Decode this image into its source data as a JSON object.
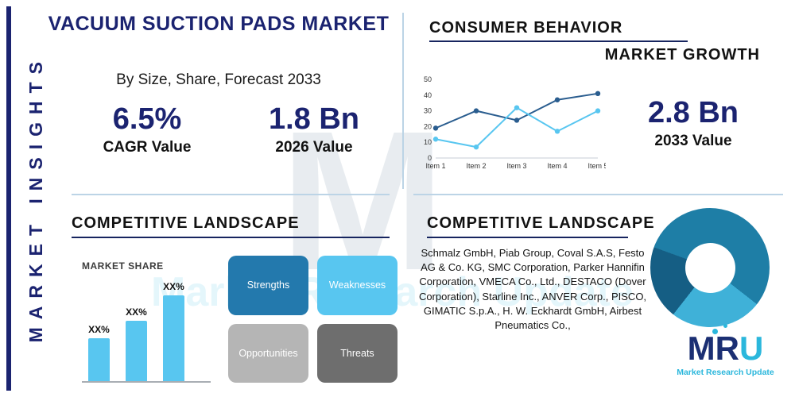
{
  "colors": {
    "navy": "#1b2370",
    "teal": "#2bb7dc",
    "light_blue": "#58c6f0",
    "divider": "#bcd4e6"
  },
  "sidebar": {
    "label": "MARKET INSIGHTS"
  },
  "header": {
    "title": "VACUUM SUCTION PADS MARKET",
    "subtitle": "By Size, Share, Forecast 2033"
  },
  "stats": {
    "cagr": {
      "value": "6.5%",
      "label": "CAGR Value"
    },
    "value_2026": {
      "value": "1.8 Bn",
      "label": "2026 Value"
    },
    "value_2033": {
      "value": "2.8 Bn",
      "label": "2033 Value"
    }
  },
  "sections": {
    "consumer_behavior": "CONSUMER BEHAVIOR",
    "market_growth": "MARKET GROWTH",
    "competitive_landscape_left": "COMPETITIVE LANDSCAPE",
    "competitive_landscape_right": "COMPETITIVE LANDSCAPE"
  },
  "swot": [
    {
      "label": "Strengths",
      "color": "#2379ad"
    },
    {
      "label": "Weaknesses",
      "color": "#58c6f0"
    },
    {
      "label": "Opportunities",
      "color": "#b5b5b5"
    },
    {
      "label": "Threats",
      "color": "#6e6e6e"
    }
  ],
  "companies": "Schmalz GmbH, Piab Group, Coval S.A.S, Festo AG & Co. KG, SMC Corporation, Parker Hannifin Corporation, VMECA Co., Ltd., DESTACO (Dover Corporation), Starline Inc., ANVER Corp., PISCO, GIMATIC S.p.A., H. W. Eckhardt GmbH, Airbest Pneumatics Co.,",
  "logo": {
    "m": "M",
    "r": "R",
    "u": "U",
    "tagline": "Market Research Update"
  },
  "watermark": {
    "letter": "M"
  },
  "chart_data": [
    {
      "type": "line",
      "title": "",
      "x": [
        "Item 1",
        "Item 2",
        "Item 3",
        "Item 4",
        "Item 5"
      ],
      "series": [
        {
          "name": "series-dark-blue",
          "color": "#2a5d8f",
          "values": [
            19,
            30,
            24,
            37,
            41
          ]
        },
        {
          "name": "series-light-blue",
          "color": "#58c6f0",
          "values": [
            12,
            7,
            32,
            17,
            30
          ]
        }
      ],
      "ylim": [
        0,
        50
      ],
      "yticks": [
        0,
        10,
        20,
        30,
        40,
        50
      ],
      "legend": "none",
      "grid": false
    },
    {
      "type": "bar",
      "title": "MARKET SHARE",
      "categories": [
        "XX%",
        "XX%",
        "XX%"
      ],
      "values": [
        25,
        35,
        50
      ],
      "max": 50,
      "color": "#58c6f0"
    },
    {
      "type": "donut",
      "rotation_deg": -70,
      "slices": [
        {
          "name": "slice-1",
          "value": 55,
          "color": "#1e7ea6"
        },
        {
          "name": "slice-2",
          "value": 25,
          "color": "#3fb1d8"
        },
        {
          "name": "slice-3",
          "value": 20,
          "color": "#155e84"
        }
      ]
    }
  ]
}
